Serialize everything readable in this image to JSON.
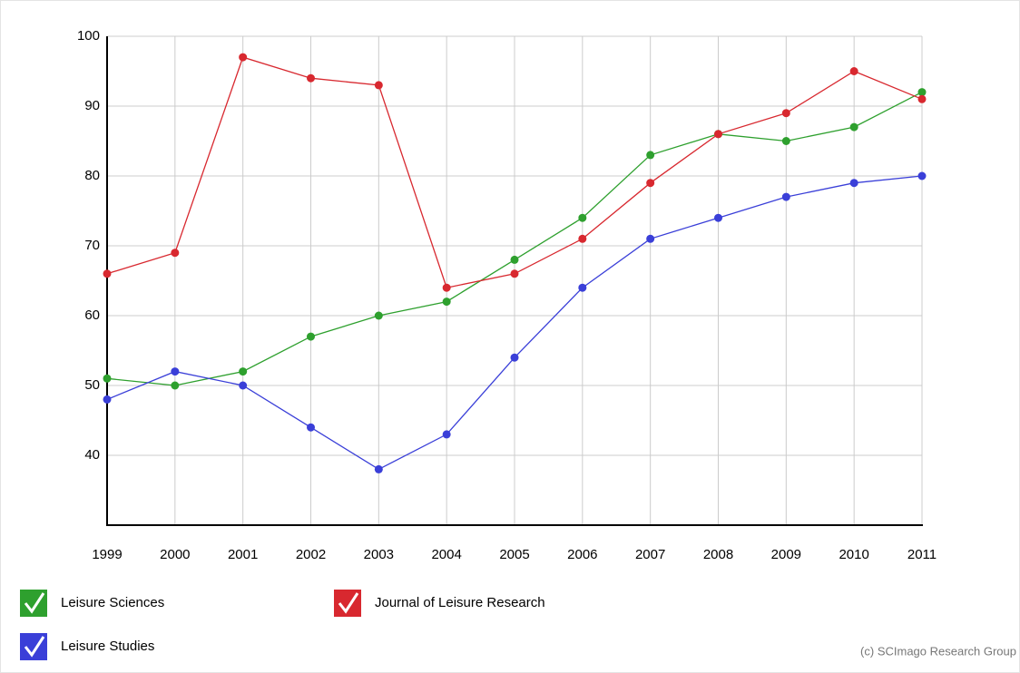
{
  "chart_data": {
    "type": "line",
    "x": [
      1999,
      2000,
      2001,
      2002,
      2003,
      2004,
      2005,
      2006,
      2007,
      2008,
      2009,
      2010,
      2011
    ],
    "xlim": [
      1999,
      2011
    ],
    "xticks": [
      1999,
      2000,
      2001,
      2002,
      2003,
      2004,
      2005,
      2006,
      2007,
      2008,
      2009,
      2010,
      2011
    ],
    "ylim": [
      30,
      100
    ],
    "yticks": [
      40,
      50,
      60,
      70,
      80,
      90,
      100
    ],
    "grid": true,
    "series": [
      {
        "name": "Leisure Sciences",
        "color": "#2ea02e",
        "values": [
          51,
          50,
          52,
          57,
          60,
          62,
          68,
          74,
          83,
          86,
          85,
          87,
          92
        ]
      },
      {
        "name": "Journal of Leisure Research",
        "color": "#d8282f",
        "values": [
          66,
          69,
          97,
          94,
          93,
          64,
          66,
          71,
          79,
          86,
          89,
          95,
          91
        ]
      },
      {
        "name": "Leisure Studies",
        "color": "#3a3fd8",
        "values": [
          48,
          52,
          50,
          44,
          38,
          43,
          54,
          64,
          71,
          74,
          77,
          79,
          80
        ]
      }
    ],
    "credit": "(c) SCImago Research Group"
  }
}
